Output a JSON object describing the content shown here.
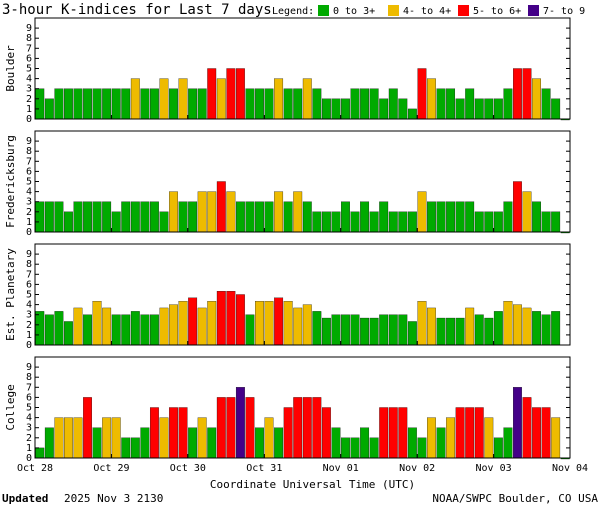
{
  "header": {
    "title": "3-hour K-indices for Last 7 days",
    "legend_label": "Legend:",
    "legend": [
      {
        "name": "0 to 3+",
        "color": "#0a0"
      },
      {
        "name": "4- to 4+",
        "color": "#eb0"
      },
      {
        "name": "5- to 6+",
        "color": "#f00"
      },
      {
        "name": "7- to 9",
        "color": "#408"
      }
    ]
  },
  "chart_data": [
    {
      "type": "bar",
      "ylabel": "Boulder",
      "ylim": [
        0,
        10
      ],
      "yticks": [
        0,
        1,
        2,
        3,
        4,
        5,
        6,
        7,
        8,
        9
      ],
      "values": [
        3,
        2,
        3,
        3,
        3,
        3,
        3,
        3,
        3,
        3,
        4,
        3,
        3,
        4,
        3,
        4,
        3,
        3,
        5,
        4,
        5,
        5,
        3,
        3,
        3,
        4,
        3,
        3,
        4,
        3,
        2,
        2,
        2,
        3,
        3,
        3,
        2,
        3,
        2,
        1,
        5,
        4,
        3,
        3,
        2,
        3,
        2,
        2,
        2,
        3,
        5,
        5,
        4,
        3,
        2,
        0
      ],
      "colors": [
        "#0a0",
        "#0a0",
        "#0a0",
        "#0a0",
        "#0a0",
        "#0a0",
        "#0a0",
        "#0a0",
        "#0a0",
        "#0a0",
        "#eb0",
        "#0a0",
        "#0a0",
        "#eb0",
        "#0a0",
        "#eb0",
        "#0a0",
        "#0a0",
        "#f00",
        "#eb0",
        "#f00",
        "#f00",
        "#0a0",
        "#0a0",
        "#0a0",
        "#eb0",
        "#0a0",
        "#0a0",
        "#eb0",
        "#0a0",
        "#0a0",
        "#0a0",
        "#0a0",
        "#0a0",
        "#0a0",
        "#0a0",
        "#0a0",
        "#0a0",
        "#0a0",
        "#0a0",
        "#f00",
        "#eb0",
        "#0a0",
        "#0a0",
        "#0a0",
        "#0a0",
        "#0a0",
        "#0a0",
        "#0a0",
        "#0a0",
        "#f00",
        "#f00",
        "#eb0",
        "#0a0",
        "#0a0",
        "#0a0"
      ]
    },
    {
      "type": "bar",
      "ylabel": "Fredericksburg",
      "ylim": [
        0,
        10
      ],
      "yticks": [
        0,
        1,
        2,
        3,
        4,
        5,
        6,
        7,
        8,
        9
      ],
      "values": [
        3,
        3,
        3,
        2,
        3,
        3,
        3,
        3,
        2,
        3,
        3,
        3,
        3,
        2,
        4,
        3,
        3,
        4,
        4,
        5,
        4,
        3,
        3,
        3,
        3,
        4,
        3,
        4,
        3,
        2,
        2,
        2,
        3,
        2,
        3,
        2,
        3,
        2,
        2,
        2,
        4,
        3,
        3,
        3,
        3,
        3,
        2,
        2,
        2,
        3,
        5,
        4,
        3,
        2,
        2,
        0
      ],
      "colors": [
        "#0a0",
        "#0a0",
        "#0a0",
        "#0a0",
        "#0a0",
        "#0a0",
        "#0a0",
        "#0a0",
        "#0a0",
        "#0a0",
        "#0a0",
        "#0a0",
        "#0a0",
        "#0a0",
        "#eb0",
        "#0a0",
        "#0a0",
        "#eb0",
        "#eb0",
        "#f00",
        "#eb0",
        "#0a0",
        "#0a0",
        "#0a0",
        "#0a0",
        "#eb0",
        "#0a0",
        "#eb0",
        "#0a0",
        "#0a0",
        "#0a0",
        "#0a0",
        "#0a0",
        "#0a0",
        "#0a0",
        "#0a0",
        "#0a0",
        "#0a0",
        "#0a0",
        "#0a0",
        "#eb0",
        "#0a0",
        "#0a0",
        "#0a0",
        "#0a0",
        "#0a0",
        "#0a0",
        "#0a0",
        "#0a0",
        "#0a0",
        "#f00",
        "#eb0",
        "#0a0",
        "#0a0",
        "#0a0",
        "#0a0"
      ]
    },
    {
      "type": "bar",
      "ylabel": "Est. Planetary",
      "ylim": [
        0,
        10
      ],
      "yticks": [
        0,
        1,
        2,
        3,
        4,
        5,
        6,
        7,
        8,
        9
      ],
      "values": [
        3.33,
        3,
        3.33,
        2.33,
        3.67,
        3,
        4.33,
        3.67,
        3,
        3,
        3.33,
        3,
        3,
        3.67,
        4,
        4.33,
        4.67,
        3.67,
        4.33,
        5.33,
        5.33,
        5,
        3,
        4.33,
        4.33,
        4.67,
        4.33,
        3.67,
        4,
        3.33,
        2.67,
        3,
        3,
        3,
        2.67,
        2.67,
        3,
        3,
        3,
        2.33,
        4.33,
        3.67,
        2.67,
        2.67,
        2.67,
        3.67,
        3,
        2.67,
        3.33,
        4.33,
        4,
        3.67,
        3.33,
        3,
        3.33,
        null
      ],
      "colors": [
        "#0a0",
        "#0a0",
        "#0a0",
        "#0a0",
        "#eb0",
        "#0a0",
        "#eb0",
        "#eb0",
        "#0a0",
        "#0a0",
        "#0a0",
        "#0a0",
        "#0a0",
        "#eb0",
        "#eb0",
        "#eb0",
        "#f00",
        "#eb0",
        "#eb0",
        "#f00",
        "#f00",
        "#f00",
        "#0a0",
        "#eb0",
        "#eb0",
        "#f00",
        "#eb0",
        "#eb0",
        "#eb0",
        "#0a0",
        "#0a0",
        "#0a0",
        "#0a0",
        "#0a0",
        "#0a0",
        "#0a0",
        "#0a0",
        "#0a0",
        "#0a0",
        "#0a0",
        "#eb0",
        "#eb0",
        "#0a0",
        "#0a0",
        "#0a0",
        "#eb0",
        "#0a0",
        "#0a0",
        "#0a0",
        "#eb0",
        "#eb0",
        "#eb0",
        "#0a0",
        "#0a0",
        "#0a0",
        "#0a0"
      ]
    },
    {
      "type": "bar",
      "ylabel": "College",
      "ylim": [
        0,
        10
      ],
      "yticks": [
        0,
        1,
        2,
        3,
        4,
        5,
        6,
        7,
        8,
        9
      ],
      "values": [
        1,
        3,
        4,
        4,
        4,
        6,
        3,
        4,
        4,
        2,
        2,
        3,
        5,
        4,
        5,
        5,
        3,
        4,
        3,
        6,
        6,
        7,
        6,
        3,
        4,
        3,
        5,
        6,
        6,
        6,
        5,
        3,
        2,
        2,
        3,
        2,
        5,
        5,
        5,
        3,
        2,
        4,
        3,
        4,
        5,
        5,
        5,
        4,
        2,
        3,
        7,
        6,
        5,
        5,
        4,
        0
      ],
      "colors": [
        "#0a0",
        "#0a0",
        "#eb0",
        "#eb0",
        "#eb0",
        "#f00",
        "#0a0",
        "#eb0",
        "#eb0",
        "#0a0",
        "#0a0",
        "#0a0",
        "#f00",
        "#eb0",
        "#f00",
        "#f00",
        "#0a0",
        "#eb0",
        "#0a0",
        "#f00",
        "#f00",
        "#408",
        "#f00",
        "#0a0",
        "#eb0",
        "#0a0",
        "#f00",
        "#f00",
        "#f00",
        "#f00",
        "#f00",
        "#0a0",
        "#0a0",
        "#0a0",
        "#0a0",
        "#0a0",
        "#f00",
        "#f00",
        "#f00",
        "#0a0",
        "#0a0",
        "#eb0",
        "#0a0",
        "#eb0",
        "#f00",
        "#f00",
        "#f00",
        "#eb0",
        "#0a0",
        "#0a0",
        "#408",
        "#f00",
        "#f00",
        "#f00",
        "#eb0",
        "#0a0"
      ],
      "xticks": [
        "Oct 28",
        "Oct 29",
        "Oct 30",
        "Oct 31",
        "Nov 01",
        "Nov 02",
        "Nov 03",
        "Nov 04"
      ],
      "xlabel": "Coordinate Universal Time (UTC)"
    }
  ],
  "footer": {
    "updated_label": "Updated",
    "updated_time": "2025 Nov  3 2130",
    "credit": "NOAA/SWPC Boulder, CO USA"
  }
}
